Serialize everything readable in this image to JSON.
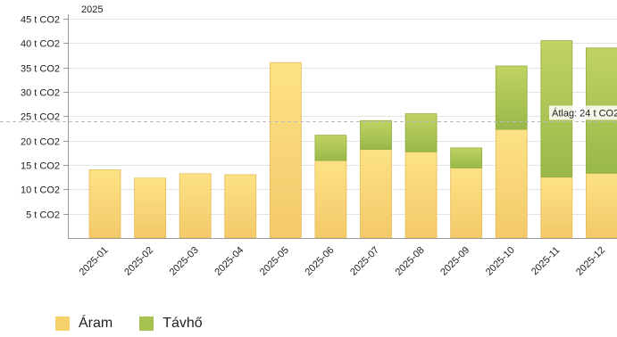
{
  "chart_data": {
    "type": "bar",
    "stacked": true,
    "title": "2025",
    "categories": [
      "2025-01",
      "2025-02",
      "2025-03",
      "2025-04",
      "2025-05",
      "2025-06",
      "2025-07",
      "2025-08",
      "2025-09",
      "2025-10",
      "2025-11",
      "2025-12"
    ],
    "series": [
      {
        "name": "Áram",
        "color": "#f6d06a",
        "values": [
          14.0,
          12.3,
          13.2,
          13.0,
          36.0,
          15.9,
          18.2,
          17.7,
          14.4,
          22.3,
          12.5,
          13.3
        ]
      },
      {
        "name": "Távhő",
        "color": "#a8c24f",
        "values": [
          0,
          0,
          0,
          0,
          0,
          5.2,
          5.9,
          7.8,
          4.1,
          13.0,
          28.0,
          25.7
        ]
      }
    ],
    "y_ticks": [
      "5 t CO2",
      "10 t CO2",
      "15 t CO2",
      "20 t CO2",
      "25 t CO2",
      "30 t CO2",
      "35 t CO2",
      "40 t CO2",
      "45 t CO2"
    ],
    "ylim": [
      0,
      45
    ],
    "average": {
      "value": 24,
      "label": "Átlag: 24 t CO2"
    },
    "grid": true,
    "legend_position": "bottom-left"
  }
}
